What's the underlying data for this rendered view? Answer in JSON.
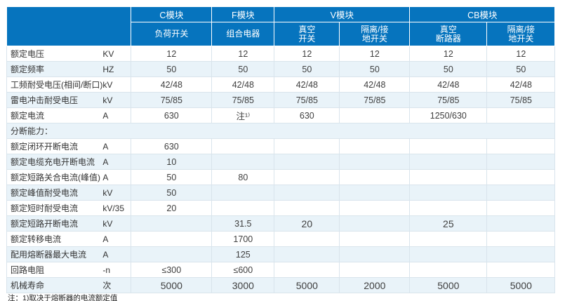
{
  "table": {
    "groups": [
      {
        "label": "C模块",
        "span": 1
      },
      {
        "label": "F模块",
        "span": 1
      },
      {
        "label": "V模块",
        "span": 2
      },
      {
        "label": "CB模块",
        "span": 2
      }
    ],
    "subheads": [
      "负荷开关",
      "组合电器",
      "真空\n开关",
      "隔离/接\n地开关",
      "真空\n断路器",
      "隔离/接\n地开关"
    ],
    "rows": [
      {
        "label": "额定电压",
        "unit": "KV",
        "values": [
          "12",
          "12",
          "12",
          "12",
          "12",
          "12"
        ]
      },
      {
        "label": "额定频率",
        "unit": "HZ",
        "values": [
          "50",
          "50",
          "50",
          "50",
          "50",
          "50"
        ]
      },
      {
        "label": "工频耐受电压(相间/断口)",
        "unit": "kV",
        "values": [
          "42/48",
          "42/48",
          "42/48",
          "42/48",
          "42/48",
          "42/48"
        ]
      },
      {
        "label": "雷电冲击耐受电压",
        "unit": "kV",
        "values": [
          "75/85",
          "75/85",
          "75/85",
          "75/85",
          "75/85",
          "75/85"
        ]
      },
      {
        "label": "额定电流",
        "unit": "A",
        "values": [
          "630",
          "注¹⁾",
          "630",
          "",
          "1250/630",
          ""
        ]
      },
      {
        "label": "分断能力：",
        "unit": "",
        "section": true,
        "values": [
          "",
          "",
          "",
          "",
          "",
          ""
        ]
      },
      {
        "label": "额定闭环开断电流",
        "unit": "A",
        "values": [
          "630",
          "",
          "",
          "",
          "",
          ""
        ]
      },
      {
        "label": "额定电缆充电开断电流",
        "unit": "A",
        "values": [
          "10",
          "",
          "",
          "",
          "",
          ""
        ]
      },
      {
        "label": "额定短路关合电流(峰值)",
        "unit": "A",
        "values": [
          "50",
          "80",
          "",
          "",
          "",
          ""
        ]
      },
      {
        "label": "额定峰值耐受电流",
        "unit": "kV",
        "values": [
          "50",
          "",
          "",
          "",
          "",
          ""
        ]
      },
      {
        "label": "额定短时耐受电流",
        "unit": "kV/35",
        "values": [
          "20",
          "",
          "",
          "",
          "",
          ""
        ]
      },
      {
        "label": "额定短路开断电流",
        "unit": "kV",
        "values": [
          "",
          "31.5",
          "20",
          "",
          "25",
          ""
        ]
      },
      {
        "label": "额定转移电流",
        "unit": "A",
        "values": [
          "",
          "1700",
          "",
          "",
          "",
          ""
        ]
      },
      {
        "label": "配用熔断器最大电流",
        "unit": "A",
        "values": [
          "",
          "125",
          "",
          "",
          "",
          ""
        ]
      },
      {
        "label": "回路电阻",
        "unit": "-n",
        "values": [
          "≤300",
          "≤600",
          "",
          "",
          "",
          ""
        ]
      },
      {
        "label": "机械寿命",
        "unit": "次",
        "values": [
          "5000",
          "3000",
          "5000",
          "2000",
          "5000",
          "5000"
        ]
      }
    ]
  },
  "footnote": "注：1)取决于熔断器的电流额定值",
  "colors": {
    "header_bg": "#0674BE",
    "header_text": "#FFFFFF",
    "row_alt": "#E9F3F9",
    "grid_line": "#D9E4EC",
    "text": "#3F3F3F"
  }
}
